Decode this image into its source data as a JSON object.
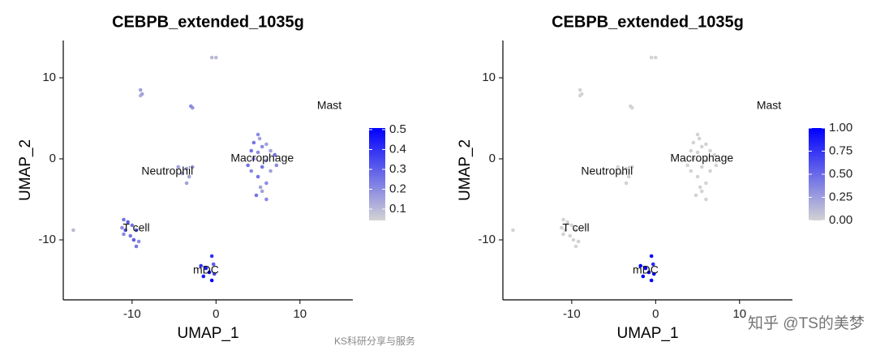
{
  "chart_data": [
    {
      "type": "scatter",
      "title": "CEBPB_extended_1035g",
      "xlabel": "UMAP_1",
      "ylabel": "UMAP_2",
      "x": [
        -0.5,
        0,
        -9,
        -8.8,
        -9,
        -3,
        -2.8,
        5,
        5.2,
        4.5,
        5.5,
        6,
        4.2,
        5,
        6.5,
        7,
        4.5,
        6,
        5.5,
        4.2,
        6.5,
        5,
        6,
        5.5,
        4.8,
        6,
        5.3,
        3.8,
        7.2,
        -4.5,
        -3.5,
        -2.8,
        -4,
        -3.2,
        -3.5,
        -17,
        -11,
        -10.5,
        -11.2,
        -10,
        -9.5,
        -11,
        -10.2,
        -9.8,
        -9.2,
        -9.5,
        -10.8,
        -0.5,
        -1.2,
        -0.8,
        -0.2,
        -1.5,
        -0.5,
        -0.3,
        -1.8
      ],
      "y": [
        12.5,
        12.5,
        8.5,
        8,
        7.8,
        6.5,
        6.3,
        3,
        2.5,
        2,
        1.5,
        1.8,
        1,
        0.8,
        1,
        0.5,
        0,
        -0.2,
        -1,
        -1.5,
        -1.5,
        -2.2,
        -3,
        -4,
        -4.5,
        -5,
        -3.5,
        -0.8,
        -0.8,
        -1,
        -1.2,
        -1,
        -1.8,
        -2.2,
        -3,
        -8.8,
        -7.5,
        -7.8,
        -8.5,
        -8.2,
        -8.8,
        -9.3,
        -9.5,
        -10,
        -10.2,
        -10.8,
        -8.8,
        -12,
        -13.5,
        -14,
        -14.2,
        -14.5,
        -15,
        -13,
        -13.2
      ],
      "values": [
        0.1,
        0.1,
        0.15,
        0.15,
        0.12,
        0.2,
        0.18,
        0.2,
        0.15,
        0.25,
        0.2,
        0.15,
        0.25,
        0.2,
        0.15,
        0.25,
        0.2,
        0.15,
        0.25,
        0.2,
        0.15,
        0.25,
        0.2,
        0.15,
        0.25,
        0.2,
        0.15,
        0.25,
        0.2,
        0.15,
        0.15,
        0.15,
        0.15,
        0.15,
        0.15,
        0.1,
        0.25,
        0.3,
        0.2,
        0.25,
        0.3,
        0.2,
        0.25,
        0.3,
        0.2,
        0.25,
        0.3,
        0.4,
        0.45,
        0.5,
        0.35,
        0.45,
        0.5,
        0.3,
        0.4
      ],
      "xlim": [
        -18.2,
        16.3
      ],
      "ylim": [
        -17.4,
        14.6
      ],
      "xticks": [
        -10,
        0,
        10
      ],
      "yticks": [
        -10,
        0,
        10
      ],
      "colorbar": {
        "lim": [
          0.043,
          0.508
        ],
        "ticks": [
          0.1,
          0.2,
          0.3,
          0.4,
          0.5
        ],
        "low_color": "#d3d3d3",
        "high_color": "#0000ff"
      },
      "annotations": [
        {
          "text": "Mast",
          "x": 13.5,
          "y": 6.5
        },
        {
          "text": "Macrophage",
          "x": 5.5,
          "y": 0
        },
        {
          "text": "Neutrophil",
          "x": -5.8,
          "y": -1.6
        },
        {
          "text": "T cell",
          "x": -9.5,
          "y": -8.6
        },
        {
          "text": "mDC",
          "x": -1.2,
          "y": -13.8
        }
      ],
      "watermark": "KS科研分享与服务"
    },
    {
      "type": "scatter",
      "title": "CEBPB_extended_1035g",
      "xlabel": "UMAP_1",
      "ylabel": "UMAP_2",
      "x": [
        -0.5,
        0,
        -9,
        -8.8,
        -9,
        -3,
        -2.8,
        5,
        5.2,
        4.5,
        5.5,
        6,
        4.2,
        5,
        6.5,
        7,
        4.5,
        6,
        5.5,
        4.2,
        6.5,
        5,
        6,
        5.5,
        4.8,
        6,
        5.3,
        3.8,
        7.2,
        -4.5,
        -3.5,
        -2.8,
        -4,
        -3.2,
        -3.5,
        -17,
        -11,
        -10.5,
        -11.2,
        -10,
        -9.5,
        -11,
        -10.2,
        -9.8,
        -9.2,
        -9.5,
        -10.8,
        -0.5,
        -1.2,
        -0.8,
        -0.2,
        -1.5,
        -0.5,
        -0.3,
        -1.8
      ],
      "y": [
        12.5,
        12.5,
        8.5,
        8,
        7.8,
        6.5,
        6.3,
        3,
        2.5,
        2,
        1.5,
        1.8,
        1,
        0.8,
        1,
        0.5,
        0,
        -0.2,
        -1,
        -1.5,
        -1.5,
        -2.2,
        -3,
        -4,
        -4.5,
        -5,
        -3.5,
        -0.8,
        -0.8,
        -1,
        -1.2,
        -1,
        -1.8,
        -2.2,
        -3,
        -8.8,
        -7.5,
        -7.8,
        -8.5,
        -8.2,
        -8.8,
        -9.3,
        -9.5,
        -10,
        -10.2,
        -10.8,
        -8.8,
        -12,
        -13.5,
        -14,
        -14.2,
        -14.5,
        -15,
        -13,
        -13.2
      ],
      "values": [
        0,
        0,
        0,
        0,
        0,
        0,
        0,
        0,
        0,
        0,
        0,
        0,
        0,
        0,
        0,
        0,
        0,
        0,
        0,
        0,
        0,
        0,
        0,
        0,
        0,
        0,
        0,
        0,
        0,
        0,
        0,
        0,
        0,
        0,
        0,
        0,
        0,
        0,
        0,
        0,
        0,
        0,
        0,
        0,
        0,
        0,
        0,
        1,
        1,
        1,
        1,
        1,
        1,
        0.8,
        1
      ],
      "xlim": [
        -18.2,
        16.3
      ],
      "ylim": [
        -17.4,
        14.6
      ],
      "xticks": [
        -10,
        0,
        10
      ],
      "yticks": [
        -10,
        0,
        10
      ],
      "colorbar": {
        "lim": [
          0,
          1
        ],
        "ticks": [
          {
            "value": 0,
            "label": "0.00"
          },
          {
            "value": 0.25,
            "label": "0.25"
          },
          {
            "value": 0.5,
            "label": "0.50"
          },
          {
            "value": 0.75,
            "label": "0.75"
          },
          {
            "value": 1,
            "label": "1.00"
          }
        ],
        "low_color": "#d3d3d3",
        "high_color": "#0000ff"
      },
      "annotations": [
        {
          "text": "Mast",
          "x": 13.5,
          "y": 6.5
        },
        {
          "text": "Macrophage",
          "x": 5.5,
          "y": 0
        },
        {
          "text": "Neutrophil",
          "x": -5.8,
          "y": -1.6
        },
        {
          "text": "T cell",
          "x": -9.5,
          "y": -8.6
        },
        {
          "text": "mDC",
          "x": -1.2,
          "y": -13.8
        }
      ],
      "watermark": "知乎 @TS的美梦"
    }
  ]
}
